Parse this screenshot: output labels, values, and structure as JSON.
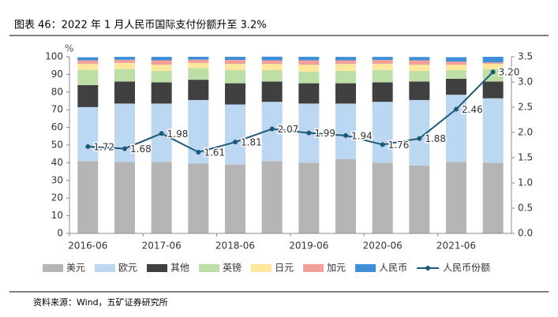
{
  "chart_data": {
    "type": "bar",
    "stacked": true,
    "title": "图表 46：2022 年 1 月人民币国际支付份额升至 3.2%",
    "source": "资料来源：Wind，五矿证券研究所",
    "ylabel": "%",
    "categories": [
      "2016-06",
      null,
      "2017-06",
      null,
      "2018-06",
      null,
      "2019-06",
      null,
      "2020-06",
      null,
      "2021-06",
      null
    ],
    "ylim": [
      0,
      100
    ],
    "yticks": [
      0,
      10,
      20,
      30,
      40,
      50,
      60,
      70,
      80,
      90,
      100
    ],
    "y2lim": [
      0,
      3.5
    ],
    "y2ticks": [
      {
        "value": 0,
        "label": "0.0"
      },
      0.5,
      {
        "value": 1,
        "label": "1.0"
      },
      1.5,
      {
        "value": 2,
        "label": "2.0"
      },
      2.5,
      {
        "value": 3,
        "label": "3.0"
      },
      3.5
    ],
    "legend": "bottom",
    "series": [
      {
        "name": "美元",
        "color": "#b5b5b5",
        "values": [
          41,
          40.5,
          40.5,
          39.5,
          39,
          41,
          40,
          42,
          40,
          38.5,
          40.5,
          40
        ]
      },
      {
        "name": "欧元",
        "color": "#bcd7f2",
        "values": [
          30.5,
          33,
          33,
          36,
          34,
          33.5,
          33.5,
          31.5,
          34.5,
          37,
          38,
          36.5
        ]
      },
      {
        "name": "其他",
        "color": "#404040",
        "values": [
          12.5,
          12.5,
          12,
          11.5,
          12,
          11.5,
          11.5,
          11.5,
          11,
          10.5,
          9,
          9.5
        ]
      },
      {
        "name": "英镑",
        "color": "#bddfa6",
        "values": [
          8.5,
          7,
          6.5,
          6.5,
          7.5,
          6.5,
          6.5,
          7,
          7,
          6,
          5,
          7
        ]
      },
      {
        "name": "日元",
        "color": "#fde79a",
        "values": [
          3.5,
          3.5,
          3.5,
          3,
          3.5,
          3.5,
          4,
          4,
          3.5,
          3.5,
          3,
          3
        ]
      },
      {
        "name": "加元",
        "color": "#f3a09a",
        "values": [
          2,
          1.8,
          2.5,
          1.9,
          2.2,
          2,
          2.5,
          2,
          2.2,
          2.5,
          1.8,
          0.8
        ]
      },
      {
        "name": "人民币",
        "color": "#3d8fd9",
        "values": [
          1.72,
          1.68,
          1.98,
          1.61,
          1.81,
          2.07,
          1.99,
          1.94,
          1.76,
          1.88,
          2.46,
          3.2
        ]
      },
      {
        "name": "人民币份额",
        "type": "line",
        "axis": "y2",
        "color": "#1c5a78",
        "values": [
          1.72,
          1.68,
          1.98,
          1.61,
          1.81,
          2.07,
          1.99,
          1.94,
          1.76,
          1.88,
          2.46,
          3.2
        ],
        "value_labels": [
          "1.72",
          "1.68",
          "1.98",
          "1.61",
          "1.81",
          "2.07",
          "1.99",
          "1.94",
          "1.76",
          "1.88",
          "2.46",
          "3.20"
        ]
      }
    ]
  }
}
